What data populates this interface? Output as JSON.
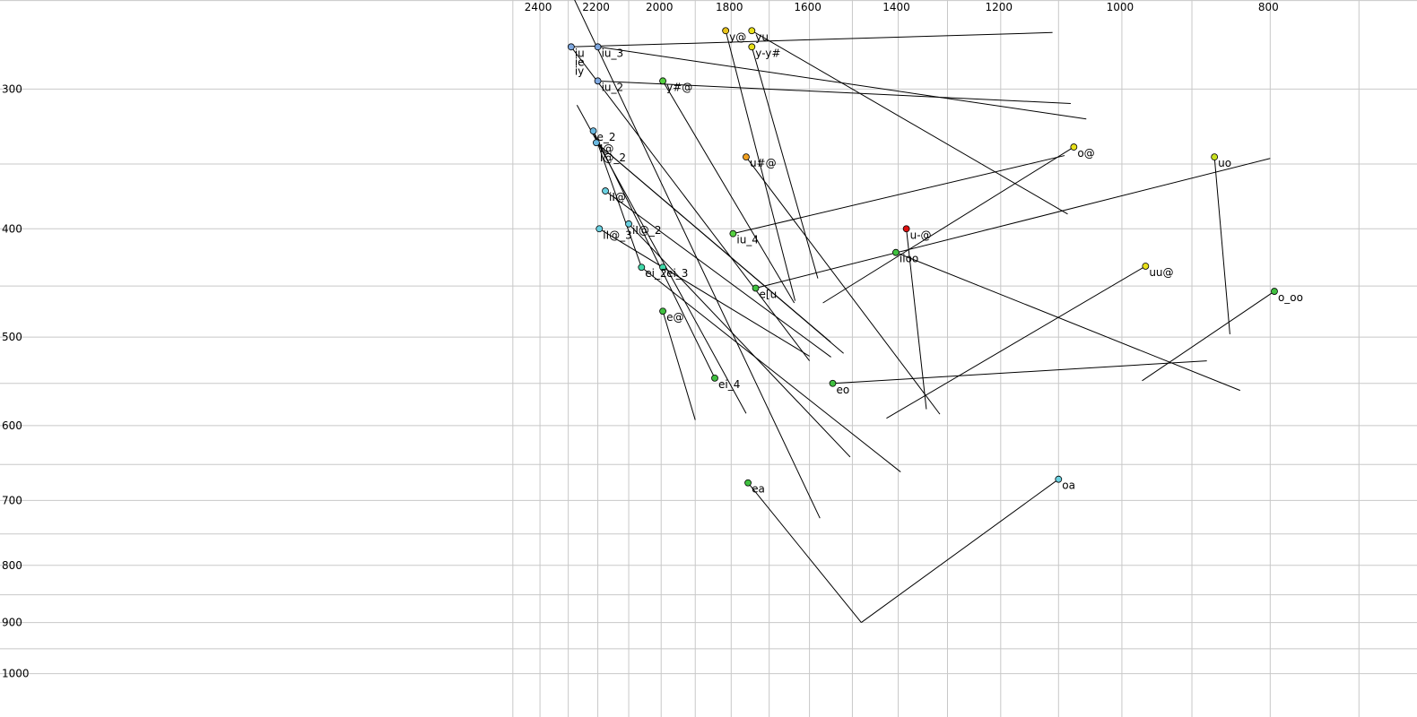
{
  "chart_data": {
    "type": "scatter",
    "title": "",
    "xlabel": "",
    "ylabel": "",
    "x_axis": "F2 (reversed, log)",
    "y_axis": "F1 (log)",
    "x_ticks": [
      2400,
      2200,
      2000,
      1800,
      1600,
      1400,
      1200,
      1000,
      800
    ],
    "y_ticks": [
      300,
      400,
      500,
      600,
      700,
      800,
      900,
      1000
    ],
    "xlim": [
      2510,
      700
    ],
    "ylim": [
      220,
      1000
    ],
    "grid": true,
    "legend": "none",
    "points": [
      {
        "label": "iu",
        "f2": 2290,
        "f1": 275,
        "color": "#7fa8e0"
      },
      {
        "label": "ie",
        "f2": 2290,
        "f1": 275,
        "color": "#7fa8e0"
      },
      {
        "label": "iy",
        "f2": 2290,
        "f1": 275,
        "color": "#7fa8e0"
      },
      {
        "label": "iu_3",
        "f2": 2200,
        "f1": 275,
        "color": "#7fa8e0"
      },
      {
        "label": "iu_2",
        "f2": 2200,
        "f1": 295,
        "color": "#7fa8e0"
      },
      {
        "label": "y@",
        "f2": 1815,
        "f1": 266,
        "color": "#e8c31a"
      },
      {
        "label": "yu",
        "f2": 1745,
        "f1": 266,
        "color": "#e8e01a"
      },
      {
        "label": "y-y#",
        "f2": 1745,
        "f1": 275,
        "color": "#e8e01a"
      },
      {
        "label": "y#@",
        "f2": 1995,
        "f1": 295,
        "color": "#55d040"
      },
      {
        "label": "e_2",
        "f2": 2215,
        "f1": 327,
        "color": "#6ab8e0"
      },
      {
        "label": "I@",
        "f2": 2205,
        "f1": 335,
        "color": "#6ab8e0"
      },
      {
        "label": "I@_2",
        "f2": 2205,
        "f1": 335,
        "color": "#6ab8e0"
      },
      {
        "label": "u#@",
        "f2": 1760,
        "f1": 345,
        "color": "#f0a020"
      },
      {
        "label": "o@",
        "f2": 1075,
        "f1": 338,
        "color": "#e8e01a"
      },
      {
        "label": "uo",
        "f2": 870,
        "f1": 345,
        "color": "#c8e020"
      },
      {
        "label": "iI@",
        "f2": 2175,
        "f1": 370,
        "color": "#6ad0e0"
      },
      {
        "label": "iu_4",
        "f2": 1795,
        "f1": 404,
        "color": "#55d040"
      },
      {
        "label": "iI@_3",
        "f2": 2195,
        "f1": 400,
        "color": "#6ad0e0"
      },
      {
        "label": "iI@_2",
        "f2": 2100,
        "f1": 396,
        "color": "#6ad0e0"
      },
      {
        "label": "u-@",
        "f2": 1383,
        "f1": 400,
        "color": "#dd1010"
      },
      {
        "label": "iioo",
        "f2": 1405,
        "f1": 420,
        "color": "#40c040"
      },
      {
        "label": "uu@",
        "f2": 965,
        "f1": 432,
        "color": "#e8e01a"
      },
      {
        "label": "ei_2",
        "f2": 2060,
        "f1": 433,
        "color": "#40d8a8"
      },
      {
        "label": "ei_3",
        "f2": 1995,
        "f1": 433,
        "color": "#40d8a8"
      },
      {
        "label": "e[u",
        "f2": 1735,
        "f1": 452,
        "color": "#40c040"
      },
      {
        "label": "o_oo",
        "f2": 795,
        "f1": 455,
        "color": "#40c040"
      },
      {
        "label": "e@",
        "f2": 1995,
        "f1": 474,
        "color": "#40c040"
      },
      {
        "label": "ei_4",
        "f2": 1845,
        "f1": 544,
        "color": "#40c040"
      },
      {
        "label": "eo",
        "f2": 1545,
        "f1": 550,
        "color": "#40c040"
      },
      {
        "label": "oa",
        "f2": 1100,
        "f1": 670,
        "color": "#6ad0e0"
      },
      {
        "label": "ea",
        "f2": 1755,
        "f1": 675,
        "color": "#40c040"
      }
    ],
    "trajectories": [
      {
        "from": [
          2380,
          220
        ],
        "to": [
          1575,
          726
        ]
      },
      {
        "from": [
          2290,
          275
        ],
        "to": [
          1110,
          267
        ]
      },
      {
        "from": [
          2290,
          275
        ],
        "to": [
          1600,
          525
        ]
      },
      {
        "from": [
          2200,
          275
        ],
        "to": [
          1055,
          319
        ]
      },
      {
        "from": [
          2200,
          295
        ],
        "to": [
          1080,
          309
        ]
      },
      {
        "from": [
          2270,
          310
        ],
        "to": [
          1760,
          585
        ]
      },
      {
        "from": [
          2205,
          335
        ],
        "to": [
          1520,
          517
        ]
      },
      {
        "from": [
          2205,
          335
        ],
        "to": [
          1550,
          505
        ]
      },
      {
        "from": [
          2215,
          327
        ],
        "to": [
          2060,
          433
        ]
      },
      {
        "from": [
          1815,
          266
        ],
        "to": [
          1635,
          464
        ]
      },
      {
        "from": [
          1745,
          266
        ],
        "to": [
          1085,
          388
        ]
      },
      {
        "from": [
          1745,
          275
        ],
        "to": [
          1580,
          443
        ]
      },
      {
        "from": [
          1995,
          295
        ],
        "to": [
          1637,
          466
        ]
      },
      {
        "from": [
          1760,
          345
        ],
        "to": [
          1315,
          586
        ]
      },
      {
        "from": [
          1075,
          338
        ],
        "to": [
          1568,
          466
        ]
      },
      {
        "from": [
          870,
          345
        ],
        "to": [
          850,
          497
        ]
      },
      {
        "from": [
          2175,
          370
        ],
        "to": [
          1549,
          521
        ]
      },
      {
        "from": [
          1795,
          404
        ],
        "to": [
          1090,
          344
        ]
      },
      {
        "from": [
          2195,
          400
        ],
        "to": [
          1600,
          520
        ]
      },
      {
        "from": [
          2100,
          396
        ],
        "to": [
          1505,
          640
        ]
      },
      {
        "from": [
          1383,
          400
        ],
        "to": [
          1342,
          580
        ]
      },
      {
        "from": [
          1405,
          420
        ],
        "to": [
          837,
          558
        ]
      },
      {
        "from": [
          965,
          432
        ],
        "to": [
          1425,
          591
        ]
      },
      {
        "from": [
          2060,
          433
        ],
        "to": [
          1395,
          660
        ]
      },
      {
        "from": [
          1735,
          452
        ],
        "to": [
          800,
          346
        ]
      },
      {
        "from": [
          795,
          455
        ],
        "to": [
          970,
          547
        ]
      },
      {
        "from": [
          1995,
          474
        ],
        "to": [
          1900,
          593
        ]
      },
      {
        "from": [
          1845,
          544
        ],
        "to": [
          2215,
          327
        ]
      },
      {
        "from": [
          1545,
          550
        ],
        "to": [
          880,
          525
        ]
      },
      {
        "from": [
          1100,
          670
        ],
        "to": [
          1480,
          900
        ]
      },
      {
        "from": [
          1755,
          675
        ],
        "to": [
          1480,
          900
        ]
      }
    ]
  }
}
